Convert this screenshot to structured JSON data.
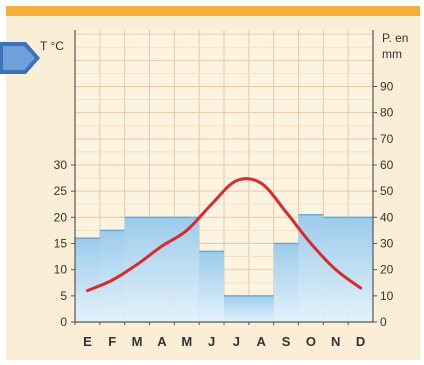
{
  "chart_data": {
    "type": "bar+line",
    "categories": [
      "E",
      "F",
      "M",
      "A",
      "M",
      "J",
      "J",
      "A",
      "S",
      "O",
      "N",
      "D"
    ],
    "temperature": {
      "axis_label": "T °C",
      "ylim": [
        0,
        30
      ],
      "ticks": [
        0,
        5,
        10,
        15,
        20,
        25,
        30
      ],
      "values": [
        6,
        8,
        11,
        14.5,
        17.5,
        22.5,
        27,
        26.5,
        21,
        15,
        10,
        6.5
      ],
      "color": "#d92b2b"
    },
    "precipitation": {
      "axis_label_line1": "P. en",
      "axis_label_line2": "mm",
      "ylim": [
        0,
        110
      ],
      "ticks": [
        0,
        10,
        20,
        30,
        40,
        50,
        60,
        70,
        80,
        90
      ],
      "values": [
        32,
        35,
        40,
        40,
        40,
        27,
        10,
        10,
        30,
        41,
        40,
        40
      ],
      "color": "#8fc3e8"
    },
    "grid": true
  }
}
